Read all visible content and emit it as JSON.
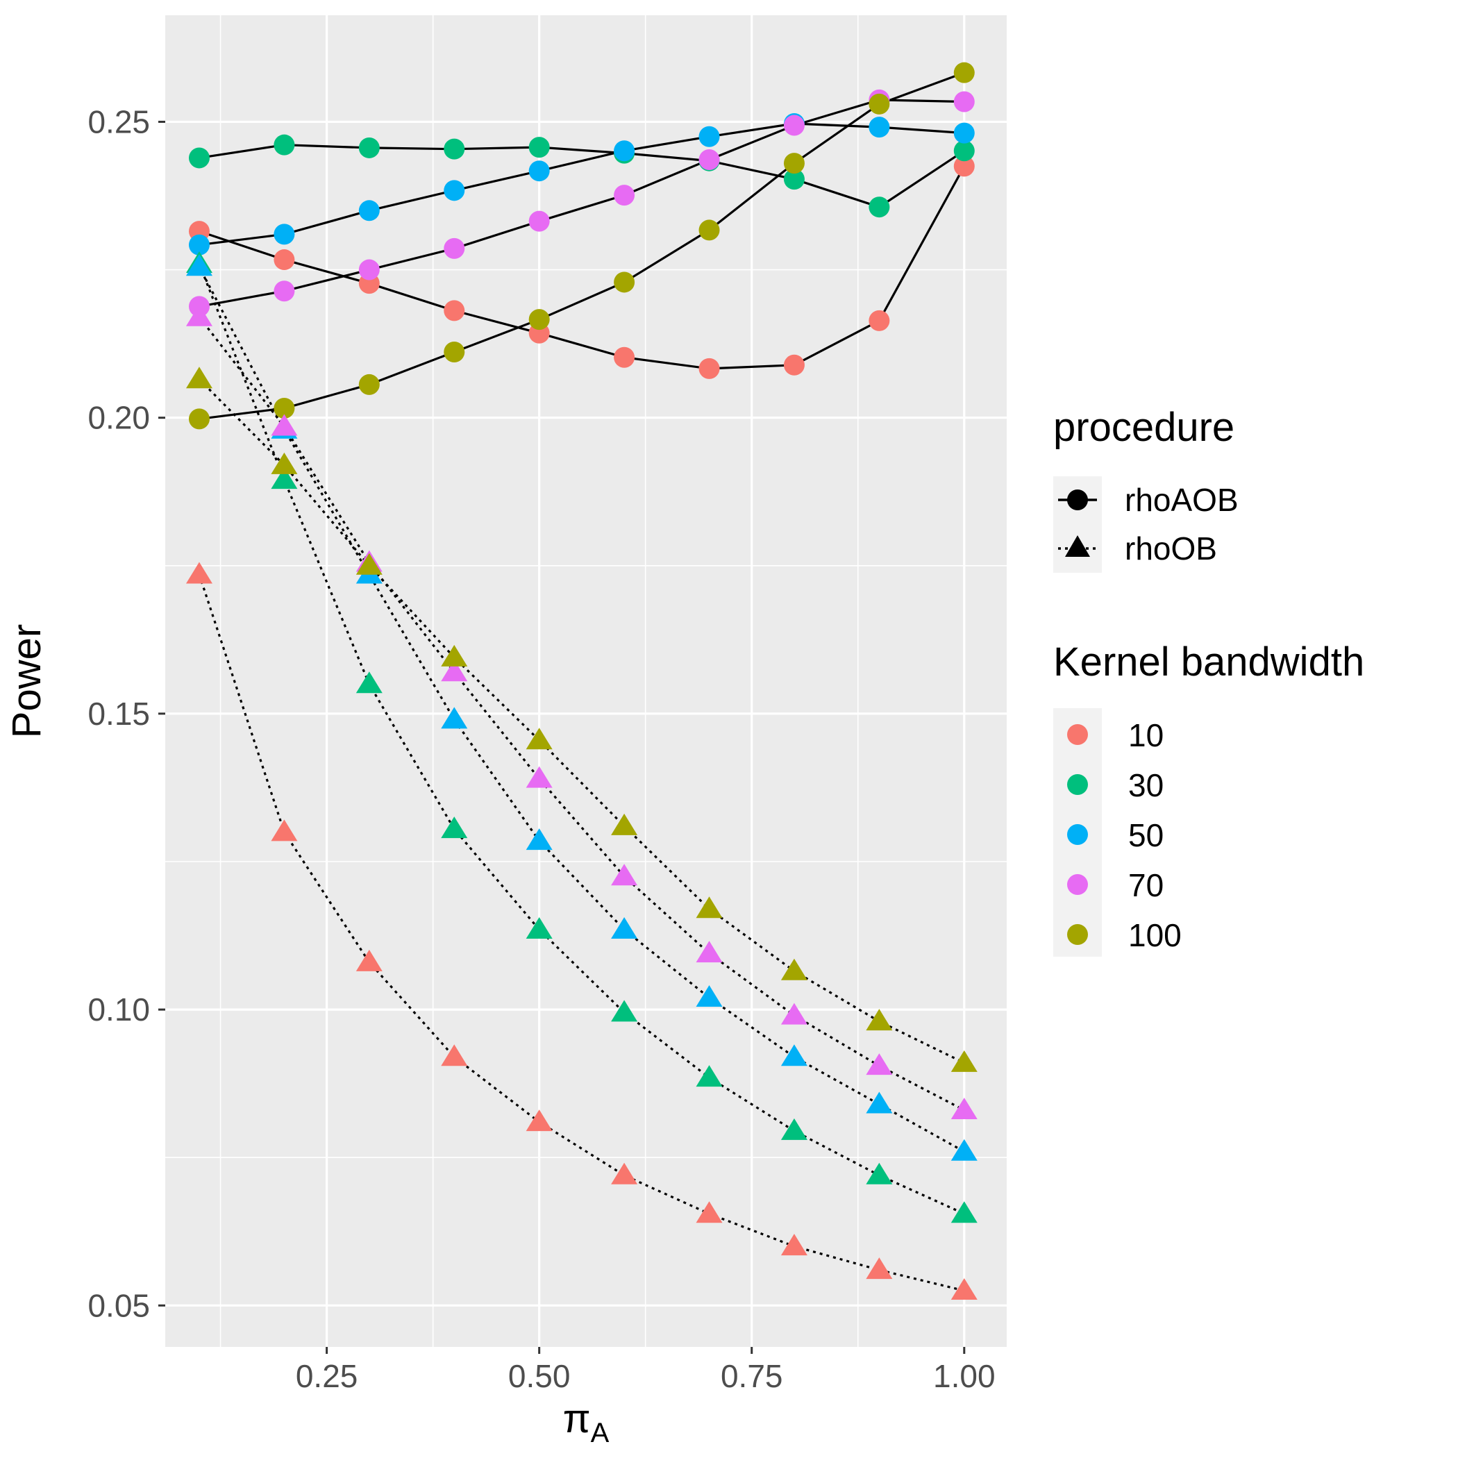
{
  "chart_data": {
    "type": "line",
    "xlabel": "π",
    "xlabel_subscript": "A",
    "ylabel": "Power",
    "xlim": [
      0.06,
      1.05
    ],
    "ylim": [
      0.043,
      0.268
    ],
    "x_ticks": [
      0.25,
      0.5,
      0.75,
      1.0
    ],
    "x_tick_labels": [
      "0.25",
      "0.50",
      "0.75",
      "1.00"
    ],
    "y_ticks": [
      0.05,
      0.1,
      0.15,
      0.2,
      0.25
    ],
    "y_tick_labels": [
      "0.05",
      "0.10",
      "0.15",
      "0.20",
      "0.25"
    ],
    "grid": true,
    "legend_position": "right",
    "x": [
      0.1,
      0.2,
      0.3,
      0.4,
      0.5,
      0.6,
      0.7,
      0.8,
      0.9,
      1.0
    ],
    "legends": {
      "procedure": {
        "title": "procedure",
        "items": [
          {
            "label": "rhoAOB",
            "shape": "circle",
            "linetype": "solid"
          },
          {
            "label": "rhoOB",
            "shape": "triangle",
            "linetype": "dotted"
          }
        ]
      },
      "bandwidth": {
        "title": "Kernel bandwidth",
        "items": [
          {
            "label": "10",
            "color": "#F8766D"
          },
          {
            "label": "30",
            "color": "#00BF7D"
          },
          {
            "label": "50",
            "color": "#00B0F6"
          },
          {
            "label": "70",
            "color": "#E76BF3"
          },
          {
            "label": "100",
            "color": "#A3A500"
          }
        ]
      }
    },
    "series": [
      {
        "name": "rhoAOB 10",
        "procedure": "rhoAOB",
        "bandwidth": "10",
        "color": "#F8766D",
        "values": [
          0.2315,
          0.2267,
          0.2227,
          0.2181,
          0.2143,
          0.2102,
          0.2083,
          0.2089,
          0.2164,
          0.2425
        ]
      },
      {
        "name": "rhoAOB 30",
        "procedure": "rhoAOB",
        "bandwidth": "30",
        "color": "#00BF7D",
        "values": [
          0.2439,
          0.2461,
          0.2456,
          0.2454,
          0.2457,
          0.2447,
          0.2434,
          0.2403,
          0.2356,
          0.2451
        ]
      },
      {
        "name": "rhoAOB 50",
        "procedure": "rhoAOB",
        "bandwidth": "50",
        "color": "#00B0F6",
        "values": [
          0.2292,
          0.231,
          0.235,
          0.2384,
          0.2417,
          0.2451,
          0.2475,
          0.2497,
          0.2491,
          0.2481
        ]
      },
      {
        "name": "rhoAOB 70",
        "procedure": "rhoAOB",
        "bandwidth": "70",
        "color": "#E76BF3",
        "values": [
          0.2188,
          0.2214,
          0.225,
          0.2286,
          0.2332,
          0.2376,
          0.2436,
          0.2494,
          0.2537,
          0.2534
        ]
      },
      {
        "name": "rhoAOB 100",
        "procedure": "rhoAOB",
        "bandwidth": "100",
        "color": "#A3A500",
        "values": [
          0.1998,
          0.2016,
          0.2056,
          0.2111,
          0.2166,
          0.2229,
          0.2317,
          0.243,
          0.253,
          0.2583
        ]
      },
      {
        "name": "rhoOB 10",
        "procedure": "rhoOB",
        "bandwidth": "10",
        "color": "#F8766D",
        "values": [
          0.1735,
          0.13,
          0.108,
          0.092,
          0.081,
          0.072,
          0.0655,
          0.06,
          0.056,
          0.0525
        ]
      },
      {
        "name": "rhoOB 30",
        "procedure": "rhoOB",
        "bandwidth": "30",
        "color": "#00BF7D",
        "values": [
          0.226,
          0.1895,
          0.155,
          0.1305,
          0.1135,
          0.0995,
          0.0885,
          0.0795,
          0.072,
          0.0655
        ]
      },
      {
        "name": "rhoOB 50",
        "procedure": "rhoOB",
        "bandwidth": "50",
        "color": "#00B0F6",
        "values": [
          0.2255,
          0.198,
          0.1735,
          0.149,
          0.1285,
          0.1135,
          0.102,
          0.092,
          0.084,
          0.076
        ]
      },
      {
        "name": "rhoOB 70",
        "procedure": "rhoOB",
        "bandwidth": "70",
        "color": "#E76BF3",
        "values": [
          0.217,
          0.1985,
          0.1755,
          0.157,
          0.139,
          0.1225,
          0.1095,
          0.099,
          0.0905,
          0.083
        ]
      },
      {
        "name": "rhoOB 100",
        "procedure": "rhoOB",
        "bandwidth": "100",
        "color": "#A3A500",
        "values": [
          0.2065,
          0.192,
          0.175,
          0.1595,
          0.1455,
          0.131,
          0.117,
          0.1065,
          0.098,
          0.091
        ]
      }
    ]
  }
}
